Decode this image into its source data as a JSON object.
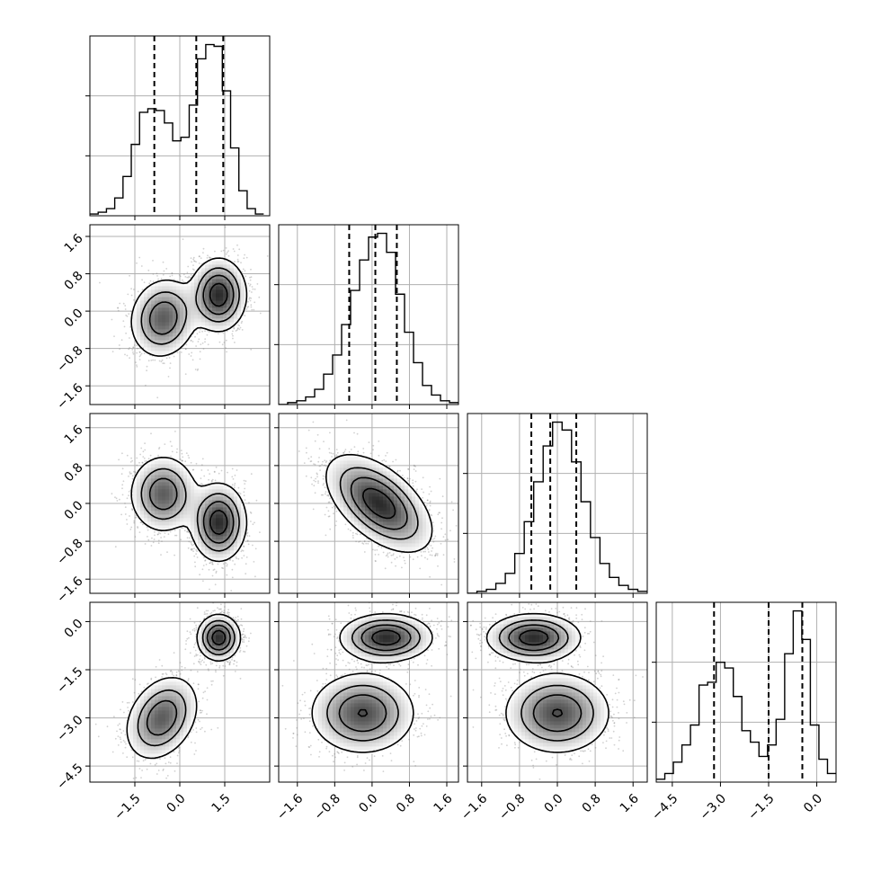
{
  "chart_data": {
    "type": "corner",
    "grid": true,
    "variables": [
      {
        "id": "x0",
        "range": [
          -3.0,
          3.0
        ],
        "ticks": [
          -1.5,
          0.0,
          1.5
        ],
        "tick_labels": [
          "−1.5",
          "0.0",
          "1.5"
        ],
        "quantiles": [
          -0.85,
          0.55,
          1.45
        ]
      },
      {
        "id": "x1",
        "range": [
          -2.0,
          1.85
        ],
        "ticks": [
          -1.6,
          -0.8,
          0.0,
          0.8,
          1.6
        ],
        "tick_labels": [
          "−1.6",
          "−0.8",
          "0.0",
          "0.8",
          "1.6"
        ],
        "quantiles": [
          -0.49,
          0.07,
          0.53
        ]
      },
      {
        "id": "x2",
        "range": [
          -1.9,
          1.9
        ],
        "ticks": [
          -1.6,
          -0.8,
          0.0,
          0.8,
          1.6
        ],
        "tick_labels": [
          "−1.6",
          "−0.8",
          "0.0",
          "0.8",
          "1.6"
        ],
        "quantiles": [
          -0.55,
          -0.15,
          0.4
        ]
      },
      {
        "id": "x3",
        "range": [
          -5.0,
          0.6
        ],
        "ticks": [
          -4.5,
          -3.0,
          -1.5,
          0.0
        ],
        "tick_labels": [
          "−4.5",
          "−3.0",
          "−1.5",
          "0.0"
        ],
        "quantiles": [
          -3.2,
          -1.5,
          -0.45
        ]
      }
    ],
    "histograms": [
      {
        "var": 0,
        "edges": [
          -3.0,
          2.8
        ],
        "counts": [
          1,
          2,
          4,
          10,
          22,
          40,
          58,
          60,
          59,
          52,
          42,
          44,
          62,
          88,
          96,
          95,
          70,
          38,
          14,
          4,
          1
        ]
      },
      {
        "var": 1,
        "edges": [
          -2.0,
          1.85
        ],
        "counts": [
          0,
          1,
          2,
          4,
          8,
          16,
          26,
          42,
          60,
          76,
          88,
          90,
          80,
          58,
          38,
          22,
          10,
          5,
          2,
          1
        ]
      },
      {
        "var": 2,
        "edges": [
          -1.9,
          1.9
        ],
        "counts": [
          0,
          1,
          2,
          5,
          10,
          20,
          36,
          56,
          74,
          86,
          82,
          66,
          46,
          28,
          15,
          8,
          4,
          2,
          1
        ]
      },
      {
        "var": 3,
        "edges": [
          -5.0,
          0.6
        ],
        "counts": [
          1,
          3,
          7,
          13,
          20,
          34,
          35,
          42,
          40,
          30,
          18,
          14,
          9,
          13,
          22,
          45,
          60,
          50,
          20,
          8,
          3
        ]
      }
    ],
    "density_modes": [
      {
        "pair": [
          0,
          1
        ],
        "modes": [
          {
            "mx": -0.55,
            "my": -0.15,
            "sx": 0.55,
            "sy": 0.42,
            "r": 0.1,
            "w": 1.0
          },
          {
            "mx": 1.3,
            "my": 0.35,
            "sx": 0.45,
            "sy": 0.38,
            "r": 0.0,
            "w": 1.3
          }
        ]
      },
      {
        "pair": [
          0,
          2
        ],
        "modes": [
          {
            "mx": -0.55,
            "my": 0.2,
            "sx": 0.55,
            "sy": 0.4,
            "r": 0.0,
            "w": 1.0
          },
          {
            "mx": 1.3,
            "my": -0.4,
            "sx": 0.45,
            "sy": 0.4,
            "r": 0.0,
            "w": 1.3
          }
        ]
      },
      {
        "pair": [
          0,
          3
        ],
        "modes": [
          {
            "mx": -0.6,
            "my": -3.0,
            "sx": 0.6,
            "sy": 0.65,
            "r": 0.3,
            "w": 1.0
          },
          {
            "mx": 1.3,
            "my": -0.5,
            "sx": 0.35,
            "sy": 0.35,
            "r": 0.0,
            "w": 1.3
          }
        ]
      },
      {
        "pair": [
          1,
          2
        ],
        "modes": [
          {
            "mx": 0.15,
            "my": 0.0,
            "sx": 0.55,
            "sy": 0.5,
            "r": -0.55,
            "w": 1.0
          }
        ]
      },
      {
        "pair": [
          1,
          3
        ],
        "modes": [
          {
            "mx": 0.3,
            "my": -0.5,
            "sx": 0.48,
            "sy": 0.36,
            "r": 0.0,
            "w": 1.2
          },
          {
            "mx": -0.2,
            "my": -2.85,
            "sx": 0.55,
            "sy": 0.62,
            "r": 0.0,
            "w": 1.0
          }
        ]
      },
      {
        "pair": [
          2,
          3
        ],
        "modes": [
          {
            "mx": -0.5,
            "my": -0.5,
            "sx": 0.48,
            "sy": 0.36,
            "r": 0.0,
            "w": 1.2
          },
          {
            "mx": 0.0,
            "my": -2.85,
            "sx": 0.55,
            "sy": 0.62,
            "r": 0.0,
            "w": 1.0
          }
        ]
      }
    ],
    "colors": {
      "frame": "#000000",
      "grid": "#b0b0b0",
      "points": "#7a7a7a",
      "density_dark": "#262626",
      "fill": "#ffffff"
    }
  }
}
